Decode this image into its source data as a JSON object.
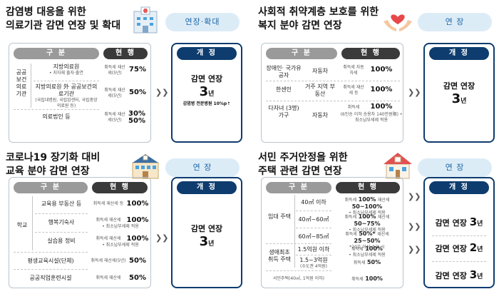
{
  "panels": [
    {
      "title_lines": [
        "감염병 대응을 위한",
        "의료기관 감면 연장 및 확대"
      ],
      "badge": "연장·확대",
      "illustration": "hospital-icon",
      "headers": {
        "category": "구 분",
        "current": "현 행",
        "revised": "개 정"
      },
      "rows": [
        {
          "group": "공공 보건 의료 기관",
          "item": "지방의료원",
          "item_note": "• 지자체 출자·출연",
          "tax": "취득세 재산세(5년)",
          "rate": "75%"
        },
        {
          "group": "",
          "item": "지방의료원 外 공공보건의료기관",
          "item_note": "(국립대병원, 국립암센터, 국립중앙의료원 등)",
          "tax": "취득세 재산세(5년)",
          "rate": "50%"
        },
        {
          "group": "",
          "item": "의료법인 등",
          "item_note": "",
          "tax": "취득세 재산세(5년)",
          "rate": "30% 50%"
        }
      ],
      "revised": {
        "label": "감면 연장",
        "years": "3",
        "unit": "년",
        "note": "감염병 전문병원 10%p↑"
      }
    },
    {
      "title_lines": [
        "사회적 취약계층 보호를 위한",
        "복지 분야 감면 연장"
      ],
      "badge": "연 장",
      "illustration": "hands-heart-icon",
      "headers": {
        "category": "구 분",
        "current": "현 행",
        "revised": "개 정"
      },
      "rows": [
        {
          "group": "장애인· 국가유공자",
          "item": "자동차",
          "tax": "취득세 자동차세",
          "rate": "100%",
          "note": ""
        },
        {
          "group": "한센인",
          "item": "거주 지역 부동산",
          "tax": "취득세 재산세 등",
          "rate": "100%",
          "note": ""
        },
        {
          "group": "다자녀 (3명) 가구",
          "item": "자동차",
          "tax": "취득세",
          "rate": "100%",
          "note": "(6인승 이하 승용차 140만원限) • 최소납부세제 적용"
        }
      ],
      "revised": {
        "label": "감면 연장",
        "years": "3",
        "unit": "년",
        "note": ""
      }
    },
    {
      "title_lines": [
        "코로나19 장기화 대비",
        "교육 분야 감면 연장"
      ],
      "badge": "연 장",
      "illustration": "school-icon",
      "headers": {
        "category": "구 분",
        "current": "현 행",
        "revised": "개 정"
      },
      "rows": [
        {
          "group": "학교",
          "item": "교육용 부동산 등",
          "tax": "취득세 재산세 등",
          "rate": "100%",
          "note": ""
        },
        {
          "group": "",
          "item": "행복기숙사",
          "tax": "취득세 재산세",
          "rate": "100%",
          "note": "• 최소납부세제 적용"
        },
        {
          "group": "",
          "item": "실습용 정비",
          "tax": "취득세 재산세",
          "rate": "100%",
          "note": "• 최소납부세제 적용"
        },
        {
          "group": "평생교육시설(단체)",
          "item": "",
          "tax": "취득세 재산세(5년)",
          "rate": "50%",
          "note": ""
        },
        {
          "group": "공공직업훈련시설",
          "item": "",
          "tax": "취득세 재산세",
          "rate": "50%",
          "note": ""
        }
      ],
      "revised": {
        "label": "감면 연장",
        "years": "3",
        "unit": "년",
        "note": ""
      }
    },
    {
      "title_lines": [
        "서민 주거안정을 위한",
        "주택 관련 감면 연장"
      ],
      "badge": "연 장",
      "illustration": "house-icon",
      "headers": {
        "category": "구 분",
        "current": "현 행",
        "revised": "개 정"
      },
      "rows": [
        {
          "group": "임대 주택",
          "item": "40㎡ 이하",
          "tax1": "취득세",
          "rate1": "100%",
          "tax2": "재산세",
          "rate2": "50~100%",
          "note": "• 최소납부세제 적용"
        },
        {
          "group": "",
          "item": "40㎡~60㎡",
          "tax1": "취득세",
          "rate1": "100%",
          "tax2": "재산세",
          "rate2": "50~75%",
          "note": "• 최소납부세제 적용"
        },
        {
          "group": "",
          "item": "60㎡~85㎡",
          "tax1": "취득세",
          "rate1": "50%*",
          "tax2": "재산세",
          "rate2": "25~50%",
          "note": "*20호 이상 소유 시"
        },
        {
          "group": "생애최초 취득 주택",
          "item": "1.5억원 이하",
          "tax1": "취득세",
          "rate1": "100%",
          "tax2": "",
          "rate2": "",
          "note": "• 최소납부세제 적용"
        },
        {
          "group": "",
          "item": "1.5~3억원",
          "item_note": "(수도권 4억원)",
          "tax1": "취득세",
          "rate1": "50%",
          "tax2": "",
          "rate2": "",
          "note": ""
        },
        {
          "group": "서민주택(40㎡, 1억원 이하)",
          "item": "",
          "tax1": "취득세",
          "rate1": "100%",
          "tax2": "",
          "rate2": "",
          "note": ""
        }
      ],
      "revised": [
        {
          "label": "감면 연장",
          "years": "3",
          "unit": "년"
        },
        {
          "label": "감면 연장",
          "years": "2",
          "unit": "년"
        },
        {
          "label": "감면 연장",
          "years": "3",
          "unit": "년"
        }
      ]
    }
  ]
}
